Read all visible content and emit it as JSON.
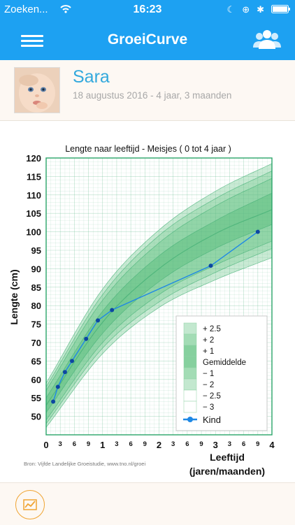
{
  "status_bar": {
    "carrier": "Zoeken...",
    "time": "16:23"
  },
  "header": {
    "title": "GroeiCurve"
  },
  "profile": {
    "name": "Sara",
    "meta": "18 augustus 2016 - 4 jaar, 3 maanden"
  },
  "chart_data": {
    "type": "line",
    "title": "Lengte naar leeftijd - Meisjes ( 0 tot 4 jaar )",
    "ylabel": "Lengte (cm)",
    "xlabel_line1": "Leeftijd",
    "xlabel_line2": "(jaren/maanden)",
    "ylim": [
      45,
      120
    ],
    "xlim": [
      0,
      48
    ],
    "y_ticks": [
      "50",
      "55",
      "60",
      "65",
      "70",
      "75",
      "80",
      "85",
      "90",
      "95",
      "100",
      "105",
      "110",
      "115",
      "120"
    ],
    "x_ticks": [
      {
        "m": 0,
        "label": "0",
        "major": true
      },
      {
        "m": 3,
        "label": "3",
        "major": false
      },
      {
        "m": 6,
        "label": "6",
        "major": false
      },
      {
        "m": 9,
        "label": "9",
        "major": false
      },
      {
        "m": 12,
        "label": "1",
        "major": true
      },
      {
        "m": 15,
        "label": "3",
        "major": false
      },
      {
        "m": 18,
        "label": "6",
        "major": false
      },
      {
        "m": 21,
        "label": "9",
        "major": false
      },
      {
        "m": 24,
        "label": "2",
        "major": true
      },
      {
        "m": 27,
        "label": "3",
        "major": false
      },
      {
        "m": 30,
        "label": "6",
        "major": false
      },
      {
        "m": 33,
        "label": "9",
        "major": false
      },
      {
        "m": 36,
        "label": "3",
        "major": true
      },
      {
        "m": 39,
        "label": "3",
        "major": false
      },
      {
        "m": 42,
        "label": "6",
        "major": false
      },
      {
        "m": 45,
        "label": "9",
        "major": false
      },
      {
        "m": 48,
        "label": "4",
        "major": true
      }
    ],
    "legend": [
      {
        "label": "+ 2.5",
        "color": "#c3e8cf"
      },
      {
        "label": "+ 2",
        "color": "#a3dcb5"
      },
      {
        "label": "+ 1",
        "color": "#86d09e"
      },
      {
        "label": "Gemiddelde",
        "color": "#86d09e"
      },
      {
        "label": "− 1",
        "color": "#a3dcb5"
      },
      {
        "label": "− 2",
        "color": "#c3e8cf"
      },
      {
        "label": "− 2.5",
        "color": "#ffffff"
      },
      {
        "label": "− 3",
        "color": "#ffffff"
      }
    ],
    "legend_series": "Kind",
    "reference": {
      "x": [
        0,
        12,
        24,
        36,
        48
      ],
      "minus3": [
        47.0,
        67.0,
        79.5,
        87.0,
        93.0
      ],
      "minus2_5": [
        48.0,
        68.5,
        81.0,
        89.0,
        95.5
      ],
      "minus2": [
        49.0,
        70.0,
        83.0,
        91.0,
        97.5
      ],
      "minus1": [
        51.0,
        72.5,
        86.5,
        95.5,
        102.0
      ],
      "mean": [
        53.0,
        75.5,
        90.0,
        99.5,
        106.0
      ],
      "plus1": [
        55.0,
        78.5,
        93.5,
        103.0,
        110.5
      ],
      "plus2": [
        57.0,
        81.5,
        97.0,
        107.0,
        114.5
      ],
      "plus2_5": [
        58.0,
        83.0,
        99.0,
        109.0,
        116.5
      ],
      "plus3": [
        59.0,
        84.5,
        100.5,
        111.0,
        118.5
      ]
    },
    "series": [
      {
        "name": "Kind",
        "color": "#1e88e5",
        "x": [
          1.5,
          2.5,
          4,
          5.5,
          8.5,
          11,
          14,
          35,
          45
        ],
        "y": [
          54,
          58,
          62,
          65,
          71,
          76,
          78.8,
          90.8,
          100
        ]
      }
    ],
    "grid": true,
    "legend_position": "bottom-right",
    "source": "Bron: Vijfde Landelijke Groeistudie, www.tno.nl/groei"
  }
}
